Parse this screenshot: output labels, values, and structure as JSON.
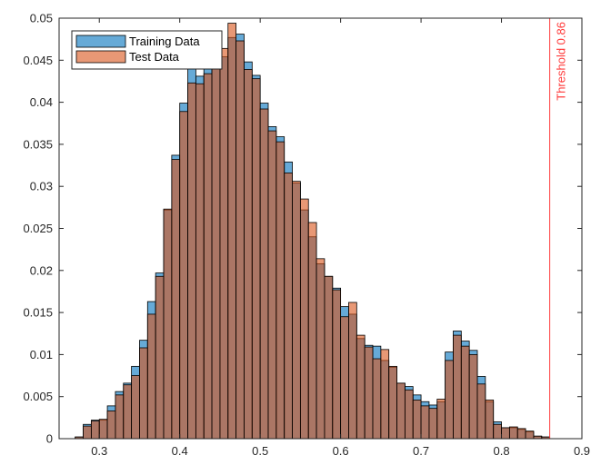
{
  "chart_data": {
    "type": "histogram",
    "title": "",
    "xlabel": "",
    "ylabel": "",
    "xlim": [
      0.25,
      0.9
    ],
    "ylim": [
      0,
      0.05
    ],
    "x_ticks": [
      0.3,
      0.4,
      0.5,
      0.6,
      0.7,
      0.8,
      0.9
    ],
    "x_tick_labels": [
      "0.3",
      "0.4",
      "0.5",
      "0.6",
      "0.7",
      "0.8",
      "0.9"
    ],
    "y_ticks": [
      0,
      0.005,
      0.01,
      0.015,
      0.02,
      0.025,
      0.03,
      0.035,
      0.04,
      0.045,
      0.05
    ],
    "y_tick_labels": [
      "0",
      "0.005",
      "0.01",
      "0.015",
      "0.02",
      "0.025",
      "0.03",
      "0.035",
      "0.04",
      "0.045",
      "0.05"
    ],
    "bin_start": 0.27,
    "bin_width": 0.01,
    "series": [
      {
        "name": "Training Data",
        "color": "#0072BD",
        "values": [
          0.0002,
          0.0017,
          0.0022,
          0.0022,
          0.0039,
          0.0056,
          0.0066,
          0.0086,
          0.0117,
          0.0163,
          0.0197,
          0.0272,
          0.0337,
          0.0399,
          0.0443,
          0.0431,
          0.0446,
          0.0461,
          0.0454,
          0.0477,
          0.0481,
          0.0448,
          0.0432,
          0.0399,
          0.0371,
          0.0359,
          0.0329,
          0.0304,
          0.0272,
          0.024,
          0.0208,
          0.0193,
          0.0179,
          0.0157,
          0.0148,
          0.0119,
          0.0111,
          0.011,
          0.0093,
          0.0085,
          0.0066,
          0.0062,
          0.0052,
          0.0044,
          0.004,
          0.0044,
          0.0103,
          0.0128,
          0.0116,
          0.0105,
          0.0074,
          0.0044,
          0.002,
          0.0013,
          0.0013,
          0.0011,
          0.0008,
          0.0003,
          0.0002
        ]
      },
      {
        "name": "Test Data",
        "color": "#D95319",
        "values": [
          0.0002,
          0.0015,
          0.0021,
          0.0023,
          0.0033,
          0.0052,
          0.0064,
          0.0075,
          0.0108,
          0.0148,
          0.0193,
          0.0273,
          0.0332,
          0.0389,
          0.0423,
          0.0422,
          0.0434,
          0.0446,
          0.0464,
          0.0494,
          0.0473,
          0.0439,
          0.0428,
          0.0392,
          0.0366,
          0.0353,
          0.0316,
          0.0306,
          0.0285,
          0.0257,
          0.0214,
          0.0193,
          0.0177,
          0.0145,
          0.0162,
          0.0123,
          0.0109,
          0.0095,
          0.0106,
          0.0086,
          0.0066,
          0.0058,
          0.0046,
          0.0039,
          0.0036,
          0.0047,
          0.0093,
          0.0123,
          0.011,
          0.01,
          0.0065,
          0.0046,
          0.0017,
          0.0013,
          0.0014,
          0.0012,
          0.0009,
          0.0003,
          0.0002
        ]
      }
    ],
    "legend": {
      "position": "top-left",
      "entries": [
        "Training Data",
        "Test Data"
      ]
    },
    "threshold": {
      "value": 0.86,
      "label": "Threshold 0.86",
      "color": "#FF3B3B"
    },
    "grid": false
  }
}
